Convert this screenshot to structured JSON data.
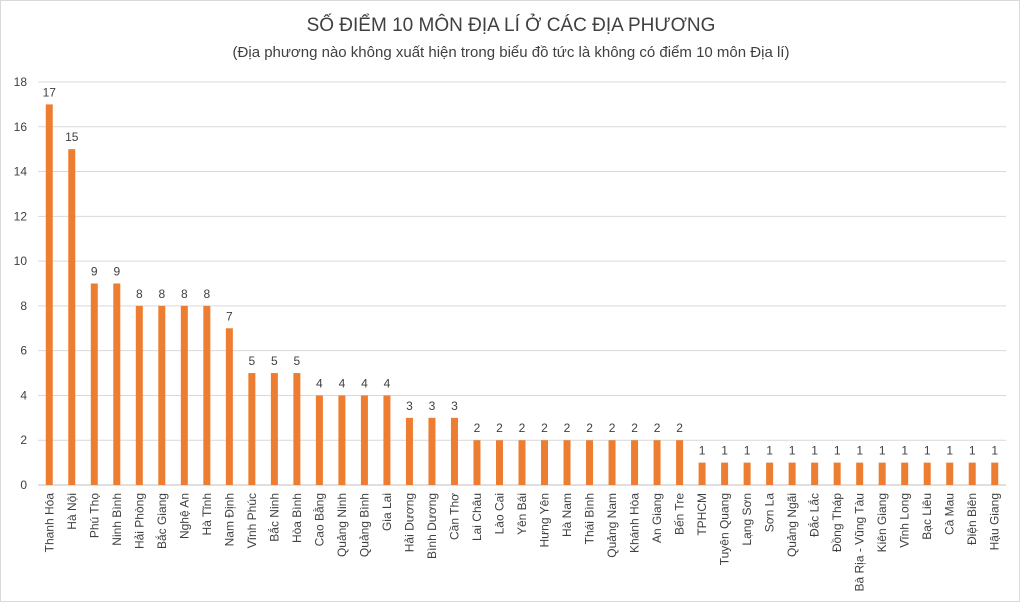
{
  "chart_data": {
    "type": "bar",
    "title": "SỐ ĐIỂM 10 MÔN ĐỊA LÍ Ở CÁC ĐỊA PHƯƠNG",
    "subtitle": "(Địa phương nào không xuất hiện trong biểu đồ tức là không có điểm 10 môn Địa lí)",
    "xlabel": "",
    "ylabel": "",
    "ylim": [
      0,
      18
    ],
    "yticks": [
      0,
      2,
      4,
      6,
      8,
      10,
      12,
      14,
      16,
      18
    ],
    "grid": true,
    "legend": "none",
    "bar_color": "#ED7D31",
    "categories": [
      "Thanh Hóa",
      "Hà Nội",
      "Phú Thọ",
      "Ninh Bình",
      "Hải Phòng",
      "Bắc Giang",
      "Nghệ An",
      "Hà Tĩnh",
      "Nam Định",
      "Vĩnh Phúc",
      "Bắc Ninh",
      "Hòa Bình",
      "Cao Bằng",
      "Quảng Ninh",
      "Quảng Bình",
      "Gia Lai",
      "Hải Dương",
      "Bình Dương",
      "Cần Thơ",
      "Lai Châu",
      "Lào Cai",
      "Yên Bái",
      "Hưng Yên",
      "Hà Nam",
      "Thái Bình",
      "Quảng Nam",
      "Khánh Hòa",
      "An Giang",
      "Bến Tre",
      "TPHCM",
      "Tuyên Quang",
      "Lạng Sơn",
      "Sơn La",
      "Quảng Ngãi",
      "Đắc Lắc",
      "Đồng Tháp",
      "Bà Rịa - Vũng Tàu",
      "Kiên Giang",
      "Vĩnh Long",
      "Bạc Liêu",
      "Cà Mau",
      "Điện Biên",
      "Hậu Giang"
    ],
    "values": [
      17,
      15,
      9,
      9,
      8,
      8,
      8,
      8,
      7,
      5,
      5,
      5,
      4,
      4,
      4,
      4,
      3,
      3,
      3,
      2,
      2,
      2,
      2,
      2,
      2,
      2,
      2,
      2,
      2,
      1,
      1,
      1,
      1,
      1,
      1,
      1,
      1,
      1,
      1,
      1,
      1,
      1,
      1
    ]
  }
}
